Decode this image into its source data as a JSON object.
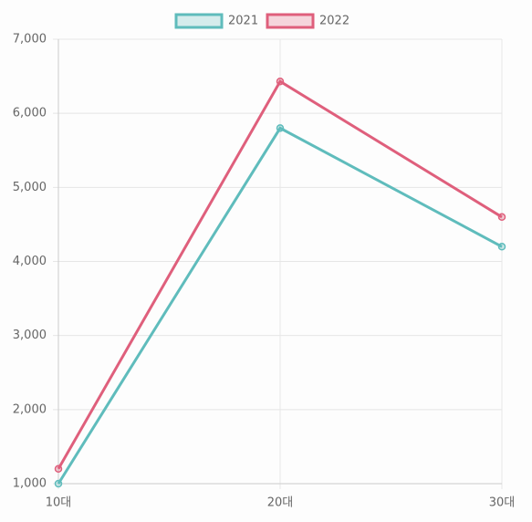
{
  "chart_data": {
    "type": "line",
    "categories": [
      "10대",
      "20대",
      "30대"
    ],
    "series": [
      {
        "name": "2021",
        "color": "#5fbcbc",
        "values": [
          1000,
          5800,
          4200
        ]
      },
      {
        "name": "2022",
        "color": "#df5f7c",
        "values": [
          1200,
          6430,
          4600
        ]
      }
    ],
    "ylim": [
      1000,
      7000
    ],
    "yticks": [
      {
        "value": 1000,
        "label": "1,000"
      },
      {
        "value": 2000,
        "label": "2,000"
      },
      {
        "value": 3000,
        "label": "3,000"
      },
      {
        "value": 4000,
        "label": "4,000"
      },
      {
        "value": 5000,
        "label": "5,000"
      },
      {
        "value": 6000,
        "label": "6,000"
      },
      {
        "value": 7000,
        "label": "7,000"
      }
    ],
    "grid": true
  }
}
